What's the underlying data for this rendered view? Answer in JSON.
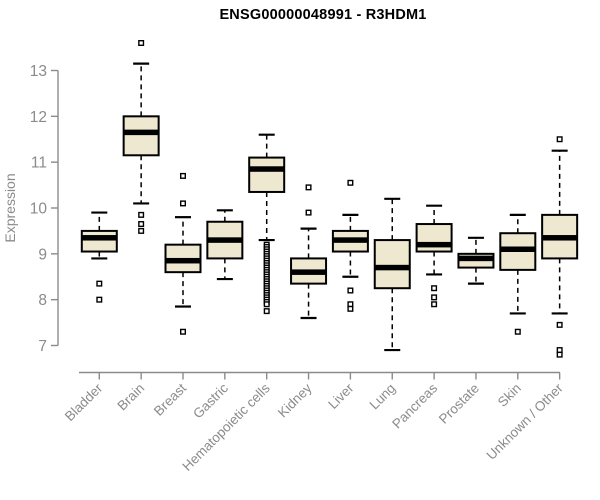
{
  "chart_data": {
    "type": "boxplot",
    "title": "ENSG00000048991 - R3HDM1",
    "ylabel": "Expression",
    "xlabel": "",
    "y_ticks": [
      7,
      8,
      9,
      10,
      11,
      12,
      13
    ],
    "ylim": [
      6.6,
      13.8
    ],
    "grid": false,
    "legend": false,
    "colors": {
      "box_fill": "#EDE8CF",
      "box_stroke": "#000000",
      "median": "#000000",
      "whisker": "#000000",
      "outlier": "#000000",
      "axis": "#8B8B8B",
      "tick_label": "#8B8B8B",
      "title": "#000000",
      "background": "#FFFFFF"
    },
    "categories": [
      "Bladder",
      "Brain",
      "Breast",
      "Gastric",
      "Hematopoietic cells",
      "Kidney",
      "Liver",
      "Lung",
      "Pancreas",
      "Prostate",
      "Skin",
      "Unknown / Other"
    ],
    "boxes": [
      {
        "category": "Bladder",
        "whisker_low": 8.9,
        "q1": 9.05,
        "median": 9.35,
        "q3": 9.5,
        "whisker_high": 9.9,
        "outliers": [
          8.35,
          8.0
        ]
      },
      {
        "category": "Brain",
        "whisker_low": 10.1,
        "q1": 11.15,
        "median": 11.65,
        "q3": 12.0,
        "whisker_high": 13.15,
        "outliers": [
          13.6,
          9.85,
          9.65,
          9.5
        ]
      },
      {
        "category": "Breast",
        "whisker_low": 7.85,
        "q1": 8.6,
        "median": 8.85,
        "q3": 9.2,
        "whisker_high": 9.8,
        "outliers": [
          10.7,
          10.1,
          7.3
        ]
      },
      {
        "category": "Gastric",
        "whisker_low": 8.45,
        "q1": 8.9,
        "median": 9.3,
        "q3": 9.7,
        "whisker_high": 9.95,
        "outliers": []
      },
      {
        "category": "Hematopoietic cells",
        "whisker_low": 9.3,
        "q1": 10.35,
        "median": 10.85,
        "q3": 11.1,
        "whisker_high": 11.6,
        "outliers": [
          9.2,
          9.15,
          9.1,
          9.05,
          9.0,
          8.95,
          8.9,
          8.85,
          8.8,
          8.75,
          8.7,
          8.65,
          8.6,
          8.55,
          8.5,
          8.45,
          8.4,
          8.35,
          8.3,
          8.25,
          8.2,
          8.15,
          8.1,
          8.05,
          8.0,
          7.95,
          7.9,
          7.75
        ]
      },
      {
        "category": "Kidney",
        "whisker_low": 7.6,
        "q1": 8.35,
        "median": 8.6,
        "q3": 8.9,
        "whisker_high": 9.55,
        "outliers": [
          10.45,
          9.9
        ]
      },
      {
        "category": "Liver",
        "whisker_low": 8.5,
        "q1": 9.05,
        "median": 9.3,
        "q3": 9.5,
        "whisker_high": 9.85,
        "outliers": [
          10.55,
          8.2,
          7.9,
          7.8
        ]
      },
      {
        "category": "Lung",
        "whisker_low": 6.9,
        "q1": 8.25,
        "median": 8.7,
        "q3": 9.3,
        "whisker_high": 10.2,
        "outliers": []
      },
      {
        "category": "Pancreas",
        "whisker_low": 8.55,
        "q1": 9.05,
        "median": 9.2,
        "q3": 9.65,
        "whisker_high": 10.05,
        "outliers": [
          8.25,
          8.05,
          7.9
        ]
      },
      {
        "category": "Prostate",
        "whisker_low": 8.35,
        "q1": 8.7,
        "median": 8.9,
        "q3": 9.0,
        "whisker_high": 9.35,
        "outliers": []
      },
      {
        "category": "Skin",
        "whisker_low": 7.7,
        "q1": 8.65,
        "median": 9.1,
        "q3": 9.45,
        "whisker_high": 9.85,
        "outliers": [
          7.3
        ]
      },
      {
        "category": "Unknown / Other",
        "whisker_low": 7.7,
        "q1": 8.9,
        "median": 9.35,
        "q3": 9.85,
        "whisker_high": 11.25,
        "outliers": [
          11.5,
          7.45,
          6.9,
          6.8
        ]
      }
    ]
  }
}
